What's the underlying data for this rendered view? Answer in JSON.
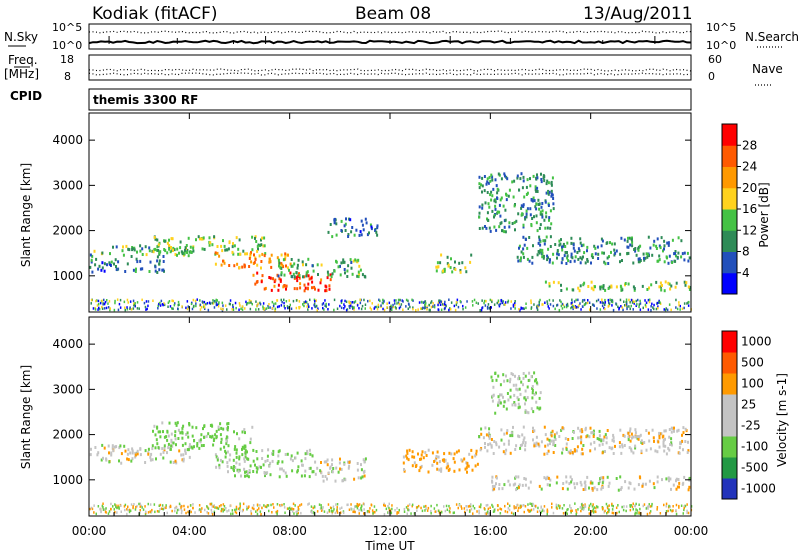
{
  "header": {
    "station": "Kodiak (fitACF)",
    "beam": "Beam 08",
    "date": "13/Aug/2011",
    "cpid_label": "CPID",
    "cpid_value": "themis 3300 RF"
  },
  "colors": {
    "power_scale": [
      "#0000ff",
      "#2250bb",
      "#2e8b57",
      "#44c244",
      "#ffd21e",
      "#ff9900",
      "#ff5a00",
      "#ff0000"
    ],
    "velocity_scale": [
      "#2233bb",
      "#229944",
      "#66cc44",
      "#c4c4c4",
      "#c4c4c4",
      "#ff9a00",
      "#ff5a00",
      "#ff0000"
    ]
  },
  "chart_data": [
    {
      "type": "line",
      "panel": "noise",
      "left_label": "N.Sky",
      "right_label": "N.Search",
      "left_ticks": [
        "10^5",
        "10^0"
      ],
      "right_ticks": [
        "10^5",
        "10^0"
      ],
      "xlim": [
        0,
        24
      ]
    },
    {
      "type": "line",
      "panel": "frequency",
      "left_label_top": "Freq.",
      "left_label_bottom": "[MHz]",
      "right_label": "Nave",
      "left_ticks": [
        18,
        8
      ],
      "right_ticks": [
        60,
        0
      ],
      "xlim": [
        0,
        24
      ]
    },
    {
      "type": "heatmap",
      "panel": "power",
      "ylabel": "Slant Range [km]",
      "yticks": [
        1000,
        2000,
        3000,
        4000
      ],
      "ylim": [
        200,
        4600
      ],
      "xlim": [
        0,
        24
      ],
      "colorbar_label": "Power [dB]",
      "colorbar_ticks": [
        "4",
        "8",
        "12",
        "16",
        "20",
        "24",
        "28"
      ],
      "colorbar_range": [
        0,
        30
      ],
      "features": [
        {
          "t0": 0.0,
          "t1": 4.0,
          "r0": 1450,
          "r1": 1700,
          "v": 12
        },
        {
          "t0": 0.0,
          "t1": 3.0,
          "r0": 1100,
          "r1": 1400,
          "v": 8
        },
        {
          "t0": 2.5,
          "t1": 7.0,
          "r0": 1500,
          "r1": 1900,
          "v": 14
        },
        {
          "t0": 5.0,
          "t1": 8.0,
          "r0": 1200,
          "r1": 1550,
          "v": 22
        },
        {
          "t0": 6.5,
          "t1": 9.6,
          "r0": 700,
          "r1": 1100,
          "v": 28
        },
        {
          "t0": 7.5,
          "t1": 11.0,
          "r0": 1000,
          "r1": 1400,
          "v": 12
        },
        {
          "t0": 9.5,
          "t1": 11.5,
          "r0": 1900,
          "r1": 2300,
          "v": 8
        },
        {
          "t0": 13.8,
          "t1": 15.2,
          "r0": 1100,
          "r1": 1500,
          "v": 14
        },
        {
          "t0": 15.5,
          "t1": 18.5,
          "r0": 2000,
          "r1": 3300,
          "v": 10
        },
        {
          "t0": 17.0,
          "t1": 24.0,
          "r0": 1300,
          "r1": 1900,
          "v": 10
        },
        {
          "t0": 18.0,
          "t1": 24.0,
          "r0": 700,
          "r1": 900,
          "v": 14
        }
      ]
    },
    {
      "type": "heatmap",
      "panel": "velocity",
      "ylabel": "Slant Range [km]",
      "yticks": [
        1000,
        2000,
        3000,
        4000
      ],
      "ylim": [
        200,
        4600
      ],
      "xlim": [
        0,
        24
      ],
      "xlabel": "Time UT",
      "xticks": [
        "00:00",
        "04:00",
        "08:00",
        "12:00",
        "16:00",
        "20:00",
        "00:00"
      ],
      "colorbar_label": "Velocity [m s-1]",
      "colorbar_ticks": [
        "1000",
        "500",
        "100",
        "25",
        "-25",
        "-100",
        "-500",
        "-1000"
      ],
      "features": [
        {
          "t0": 0.0,
          "t1": 4.0,
          "r0": 1400,
          "r1": 1800,
          "v": 0
        },
        {
          "t0": 2.5,
          "t1": 6.5,
          "r0": 1700,
          "r1": 2300,
          "v": 100
        },
        {
          "t0": 5.0,
          "t1": 9.0,
          "r0": 1100,
          "r1": 1700,
          "v": 60
        },
        {
          "t0": 9.0,
          "t1": 11.0,
          "r0": 1000,
          "r1": 1500,
          "v": 0
        },
        {
          "t0": 12.5,
          "t1": 15.5,
          "r0": 1200,
          "r1": 1700,
          "v": -100
        },
        {
          "t0": 15.5,
          "t1": 24.0,
          "r0": 1600,
          "r1": 2200,
          "v": 0
        },
        {
          "t0": 16.0,
          "t1": 24.0,
          "r0": 800,
          "r1": 1100,
          "v": 0
        },
        {
          "t0": 16.0,
          "t1": 18.0,
          "r0": 2500,
          "r1": 3400,
          "v": 60
        }
      ]
    }
  ]
}
